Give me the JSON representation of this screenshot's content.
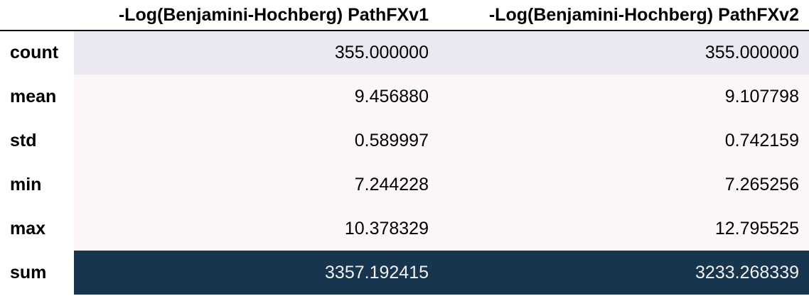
{
  "table": {
    "columns": [
      "-Log(Benjamini-Hochberg) PathFXv1",
      "-Log(Benjamini-Hochberg) PathFXv2"
    ],
    "rows": [
      {
        "label": "count",
        "values": [
          "355.000000",
          "355.000000"
        ],
        "bg": "#ebe8f1",
        "fg": "#000000"
      },
      {
        "label": "mean",
        "values": [
          "9.456880",
          "9.107798"
        ],
        "bg": "#fcf6f7",
        "fg": "#000000"
      },
      {
        "label": "std",
        "values": [
          "0.589997",
          "0.742159"
        ],
        "bg": "#fcf6f7",
        "fg": "#000000"
      },
      {
        "label": "min",
        "values": [
          "7.244228",
          "7.265256"
        ],
        "bg": "#fcf6f7",
        "fg": "#000000"
      },
      {
        "label": "max",
        "values": [
          "10.378329",
          "12.795525"
        ],
        "bg": "#fcf6f7",
        "fg": "#000000"
      },
      {
        "label": "sum",
        "values": [
          "3357.192415",
          "3233.268339"
        ],
        "bg": "#17354f",
        "fg": "#f1f1f1"
      }
    ]
  }
}
